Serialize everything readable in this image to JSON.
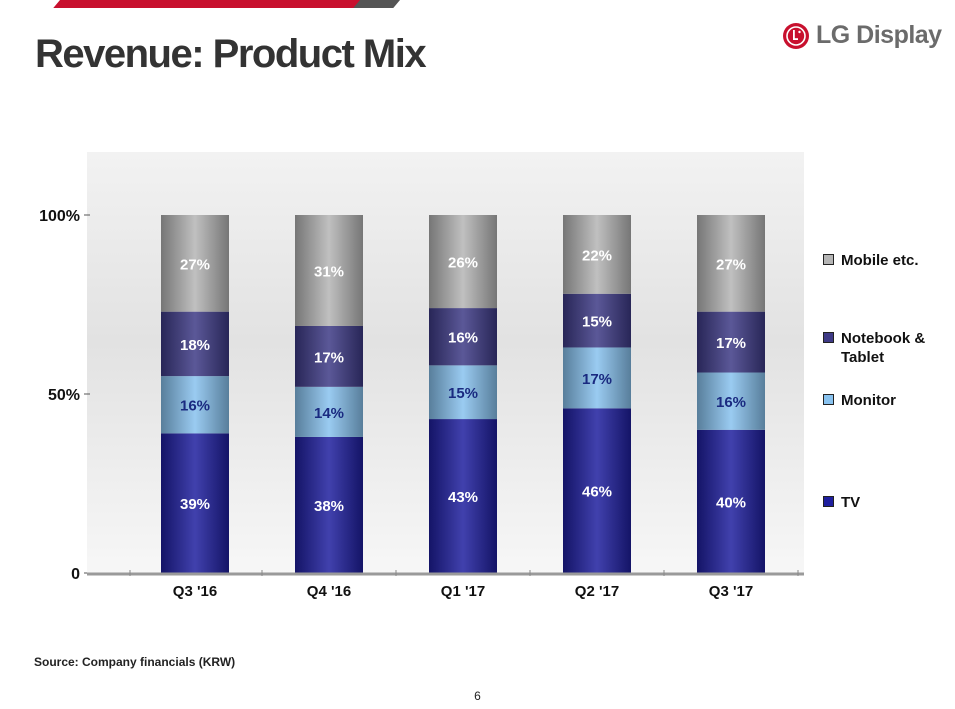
{
  "header": {
    "title": "Revenue: Product Mix",
    "logo_text": "LG Display",
    "logo_icon": "lg-logo-icon",
    "accent_color": "#c8102e"
  },
  "footer": {
    "source": "Source: Company financials (KRW)",
    "page_number": "6"
  },
  "chart_data": {
    "type": "bar",
    "stacked": true,
    "categories": [
      "Q3 '16",
      "Q4 '16",
      "Q1 '17",
      "Q2 '17",
      "Q3 '17"
    ],
    "series": [
      {
        "name": "TV",
        "values": [
          39,
          38,
          43,
          46,
          40
        ],
        "labels": [
          "39%",
          "38%",
          "43%",
          "46%",
          "40%"
        ],
        "color": "#1f1f9e"
      },
      {
        "name": "Monitor",
        "values": [
          16,
          14,
          15,
          17,
          16
        ],
        "labels": [
          "16%",
          "14%",
          "15%",
          "17%",
          "16%"
        ],
        "color": "#88c2ef"
      },
      {
        "name": "Notebook & Tablet",
        "values": [
          18,
          17,
          16,
          15,
          17
        ],
        "labels": [
          "18%",
          "17%",
          "16%",
          "15%",
          "17%"
        ],
        "color": "#3e3a86"
      },
      {
        "name": "Mobile etc.",
        "values": [
          27,
          31,
          26,
          22,
          27
        ],
        "labels": [
          "27%",
          "31%",
          "26%",
          "22%",
          "27%"
        ],
        "color": "#b5b5b5"
      }
    ],
    "y_tick_labels": [
      "0",
      "50%",
      "100%"
    ],
    "y_ticks": [
      0,
      50,
      100
    ],
    "ylim": [
      0,
      120
    ],
    "legend_position": "right",
    "grid": false
  }
}
